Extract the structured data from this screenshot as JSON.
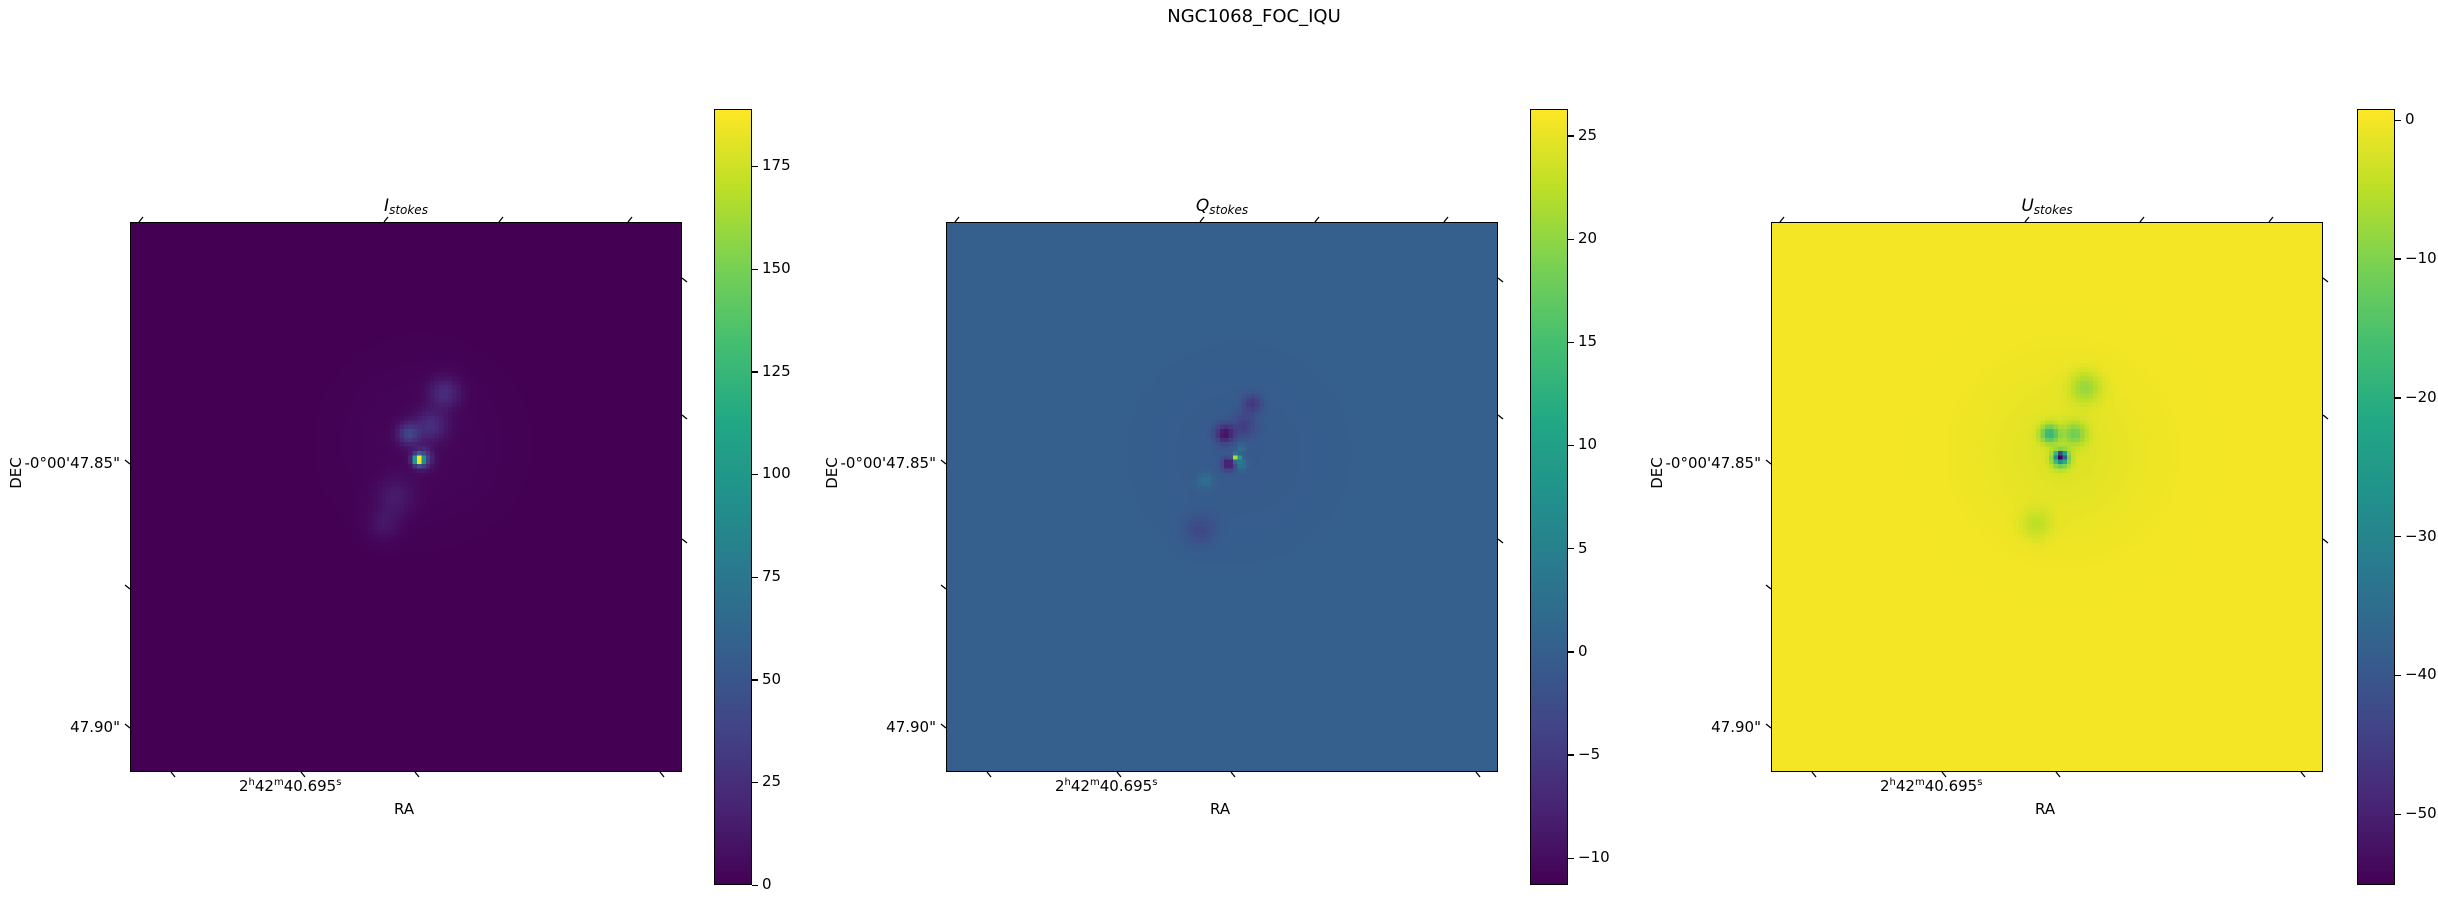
{
  "figure_title": "NGC1068_FOC_IQU",
  "chart_data": [
    {
      "type": "heatmap",
      "title": {
        "symbol": "I",
        "subscript": "stokes"
      },
      "xlabel": "RA",
      "ylabel": "DEC",
      "x_tick_labels": [
        {
          "h": "2",
          "m": "42",
          "s": "40.695"
        }
      ],
      "y_tick_labels": [
        "-0°00'47.85\"",
        "47.90\""
      ],
      "colormap": "viridis",
      "colorbar": {
        "vmin": 0,
        "vmax": 189,
        "ticks": [
          "0",
          "25",
          "50",
          "75",
          "100",
          "125",
          "150",
          "175"
        ]
      },
      "description_of_values": {
        "background": 0,
        "peak": 189
      }
    },
    {
      "type": "heatmap",
      "title": {
        "symbol": "Q",
        "subscript": "stokes"
      },
      "xlabel": "RA",
      "ylabel": "DEC",
      "x_tick_labels": [
        {
          "h": "2",
          "m": "42",
          "s": "40.695"
        }
      ],
      "y_tick_labels": [
        "-0°00'47.85\"",
        "47.90\""
      ],
      "colormap": "viridis",
      "colorbar": {
        "vmin": -11.3,
        "vmax": 26.3,
        "ticks": [
          "−10",
          "−5",
          "0",
          "5",
          "10",
          "15",
          "20",
          "25"
        ]
      },
      "description_of_values": {
        "background": 0,
        "peak": 26.3,
        "minimum": -11.3
      }
    },
    {
      "type": "heatmap",
      "title": {
        "symbol": "U",
        "subscript": "stokes"
      },
      "xlabel": "RA",
      "ylabel": "DEC",
      "x_tick_labels": [
        {
          "h": "2",
          "m": "42",
          "s": "40.695"
        }
      ],
      "y_tick_labels": [
        "-0°00'47.85\"",
        "47.90\""
      ],
      "colormap": "viridis",
      "colorbar": {
        "vmin": -55.1,
        "vmax": 0.8,
        "ticks": [
          "−50",
          "−40",
          "−30",
          "−20",
          "−10",
          "0"
        ]
      },
      "description_of_values": {
        "background": 0,
        "minimum": -55.1
      }
    }
  ]
}
